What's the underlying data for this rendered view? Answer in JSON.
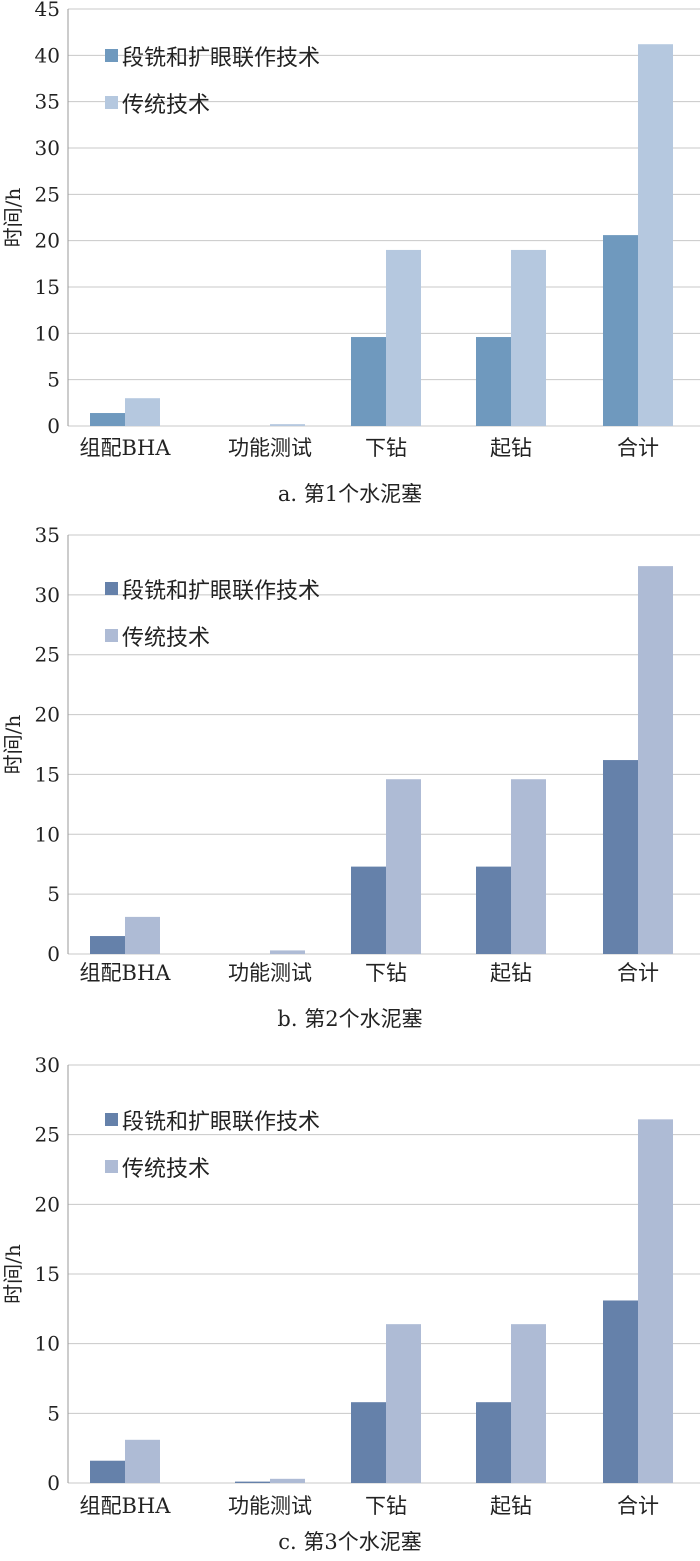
{
  "chart_data": [
    {
      "type": "bar",
      "caption": "a. 第1个水泥塞",
      "ylabel": "时间/h",
      "ylim": [
        0,
        45
      ],
      "yticks": [
        0,
        5,
        10,
        15,
        20,
        25,
        30,
        35,
        40,
        45
      ],
      "categories": [
        "组配BHA",
        "功能测试",
        "下钻",
        "起钻",
        "合计"
      ],
      "series": [
        {
          "name": "段铣和扩眼联作技术",
          "values": [
            1.4,
            0,
            9.6,
            9.6,
            20.6
          ]
        },
        {
          "name": "传统技术",
          "values": [
            3.0,
            0.2,
            19.0,
            19.0,
            41.2
          ]
        }
      ],
      "colors": [
        "#6f99be",
        "#b5c8df"
      ],
      "grid": true,
      "legend": "top-left"
    },
    {
      "type": "bar",
      "caption": "b. 第2个水泥塞",
      "ylabel": "时间/h",
      "ylim": [
        0,
        35
      ],
      "yticks": [
        0,
        5,
        10,
        15,
        20,
        25,
        30,
        35
      ],
      "categories": [
        "组配BHA",
        "功能测试",
        "下钻",
        "起钻",
        "合计"
      ],
      "series": [
        {
          "name": "段铣和扩眼联作技术",
          "values": [
            1.5,
            0,
            7.3,
            7.3,
            16.2
          ]
        },
        {
          "name": "传统技术",
          "values": [
            3.1,
            0.3,
            14.6,
            14.6,
            32.4
          ]
        }
      ],
      "colors": [
        "#6581aa",
        "#aebbd5"
      ],
      "grid": true,
      "legend": "top-left"
    },
    {
      "type": "bar",
      "caption": "c. 第3个水泥塞",
      "ylabel": "时间/h",
      "ylim": [
        0,
        30
      ],
      "yticks": [
        0,
        5,
        10,
        15,
        20,
        25,
        30
      ],
      "categories": [
        "组配BHA",
        "功能测试",
        "下钻",
        "起钻",
        "合计"
      ],
      "series": [
        {
          "name": "段铣和扩眼联作技术",
          "values": [
            1.6,
            0.1,
            5.8,
            5.8,
            13.1
          ]
        },
        {
          "name": "传统技术",
          "values": [
            3.1,
            0.3,
            11.4,
            11.4,
            26.1
          ]
        }
      ],
      "colors": [
        "#6581aa",
        "#aebbd5"
      ],
      "grid": true,
      "legend": "top-left"
    }
  ]
}
